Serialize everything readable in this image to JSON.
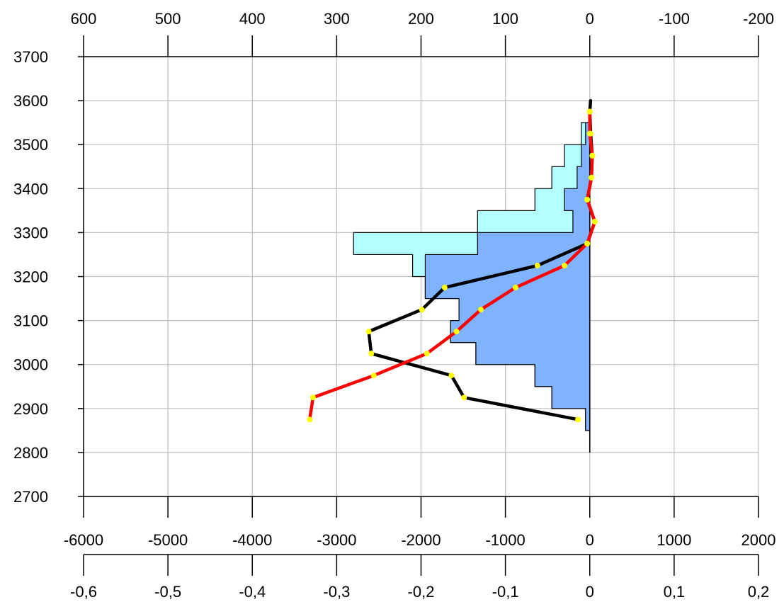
{
  "chart_data": {
    "type": "line",
    "title": "",
    "xlabel": "",
    "ylabel": "",
    "grid": true,
    "y_axis": {
      "ticks": [
        2700,
        2800,
        2900,
        3000,
        3100,
        3200,
        3300,
        3400,
        3500,
        3600,
        3700
      ],
      "labels": [
        "2700",
        "2800",
        "2900",
        "3000",
        "3100",
        "3200",
        "3300",
        "3400",
        "3500",
        "3600",
        "3700"
      ],
      "range": [
        2700,
        3700
      ]
    },
    "x_axis_top": {
      "ticks": [
        600,
        500,
        400,
        300,
        200,
        100,
        0,
        -100,
        -200
      ],
      "labels": [
        "600",
        "500",
        "400",
        "300",
        "200",
        "100",
        "0",
        "-100",
        "-200"
      ],
      "range": [
        600,
        -200
      ]
    },
    "x_axis_bottom": {
      "ticks": [
        -6000,
        -5000,
        -4000,
        -3000,
        -2000,
        -1000,
        0,
        1000,
        2000
      ],
      "labels": [
        "-6000",
        "-5000",
        "-4000",
        "-3000",
        "-2000",
        "-1000",
        "0",
        "1000",
        "2000"
      ],
      "range": [
        -6000,
        2000
      ]
    },
    "x_axis_bottom2": {
      "ticks": [
        -0.6,
        -0.5,
        -0.4,
        -0.3,
        -0.2,
        -0.1,
        0,
        0.1,
        0.2
      ],
      "labels": [
        "-0,6",
        "-0,5",
        "-0,4",
        "-0,3",
        "-0,2",
        "-0,1",
        "0",
        "0,1",
        "0,2"
      ],
      "range": [
        -0.6,
        0.2
      ]
    },
    "series": [
      {
        "kind": "step-area",
        "axis": "top",
        "color": "#b3ffff",
        "bins": [
          {
            "y0": 3550,
            "y1": 3600,
            "x": 0
          },
          {
            "y0": 3500,
            "y1": 3550,
            "x": 10
          },
          {
            "y0": 3450,
            "y1": 3500,
            "x": 30
          },
          {
            "y0": 3400,
            "y1": 3450,
            "x": 45
          },
          {
            "y0": 3350,
            "y1": 3400,
            "x": 65
          },
          {
            "y0": 3300,
            "y1": 3350,
            "x": 133
          },
          {
            "y0": 3250,
            "y1": 3300,
            "x": 280
          },
          {
            "y0": 3200,
            "y1": 3250,
            "x": 210
          },
          {
            "y0": 3150,
            "y1": 3200,
            "x": 195
          },
          {
            "y0": 3100,
            "y1": 3150,
            "x": 155
          },
          {
            "y0": 3050,
            "y1": 3100,
            "x": 165
          },
          {
            "y0": 3000,
            "y1": 3050,
            "x": 135
          },
          {
            "y0": 2950,
            "y1": 3000,
            "x": 65
          },
          {
            "y0": 2900,
            "y1": 2950,
            "x": 45
          },
          {
            "y0": 2850,
            "y1": 2900,
            "x": 5
          },
          {
            "y0": 2800,
            "y1": 2850,
            "x": 0
          }
        ]
      },
      {
        "kind": "step-area",
        "axis": "top",
        "color": "#80b3ff",
        "bins": [
          {
            "y0": 3550,
            "y1": 3600,
            "x": 0
          },
          {
            "y0": 3500,
            "y1": 3550,
            "x": 5
          },
          {
            "y0": 3450,
            "y1": 3500,
            "x": 10
          },
          {
            "y0": 3400,
            "y1": 3450,
            "x": 15
          },
          {
            "y0": 3350,
            "y1": 3400,
            "x": 30
          },
          {
            "y0": 3300,
            "y1": 3350,
            "x": 20
          },
          {
            "y0": 3250,
            "y1": 3300,
            "x": 133
          },
          {
            "y0": 3200,
            "y1": 3250,
            "x": 195
          },
          {
            "y0": 3150,
            "y1": 3200,
            "x": 195
          },
          {
            "y0": 3100,
            "y1": 3150,
            "x": 155
          },
          {
            "y0": 3050,
            "y1": 3100,
            "x": 165
          },
          {
            "y0": 3000,
            "y1": 3050,
            "x": 135
          },
          {
            "y0": 2950,
            "y1": 3000,
            "x": 65
          },
          {
            "y0": 2900,
            "y1": 2950,
            "x": 45
          },
          {
            "y0": 2850,
            "y1": 2900,
            "x": 5
          },
          {
            "y0": 2800,
            "y1": 2850,
            "x": 0
          }
        ]
      },
      {
        "kind": "line",
        "axis": "bottom",
        "color": "#000000",
        "points": [
          {
            "x": 10,
            "y": 3600
          },
          {
            "x": 0,
            "y": 3575
          },
          {
            "x": 10,
            "y": 3525
          },
          {
            "x": 30,
            "y": 3475
          },
          {
            "x": 20,
            "y": 3425
          },
          {
            "x": -30,
            "y": 3375
          },
          {
            "x": 60,
            "y": 3325
          },
          {
            "x": -30,
            "y": 3275
          },
          {
            "x": -620,
            "y": 3225
          },
          {
            "x": -1720,
            "y": 3175
          },
          {
            "x": -1990,
            "y": 3125
          },
          {
            "x": -2620,
            "y": 3075
          },
          {
            "x": -2590,
            "y": 3025
          },
          {
            "x": -1640,
            "y": 2975
          },
          {
            "x": -1490,
            "y": 2925
          },
          {
            "x": -140,
            "y": 2875
          }
        ]
      },
      {
        "kind": "line",
        "axis": "bottom",
        "color": "#ff0000",
        "points": [
          {
            "x": 0,
            "y": 3575
          },
          {
            "x": 0,
            "y": 3525
          },
          {
            "x": 30,
            "y": 3475
          },
          {
            "x": 20,
            "y": 3425
          },
          {
            "x": -30,
            "y": 3375
          },
          {
            "x": 60,
            "y": 3325
          },
          {
            "x": -30,
            "y": 3275
          },
          {
            "x": -300,
            "y": 3225
          },
          {
            "x": -880,
            "y": 3175
          },
          {
            "x": -1290,
            "y": 3125
          },
          {
            "x": -1580,
            "y": 3075
          },
          {
            "x": -1930,
            "y": 3025
          },
          {
            "x": -2560,
            "y": 2975
          },
          {
            "x": -3280,
            "y": 2925
          },
          {
            "x": -3320,
            "y": 2875
          }
        ]
      }
    ],
    "marker_color": "#ffff00"
  }
}
